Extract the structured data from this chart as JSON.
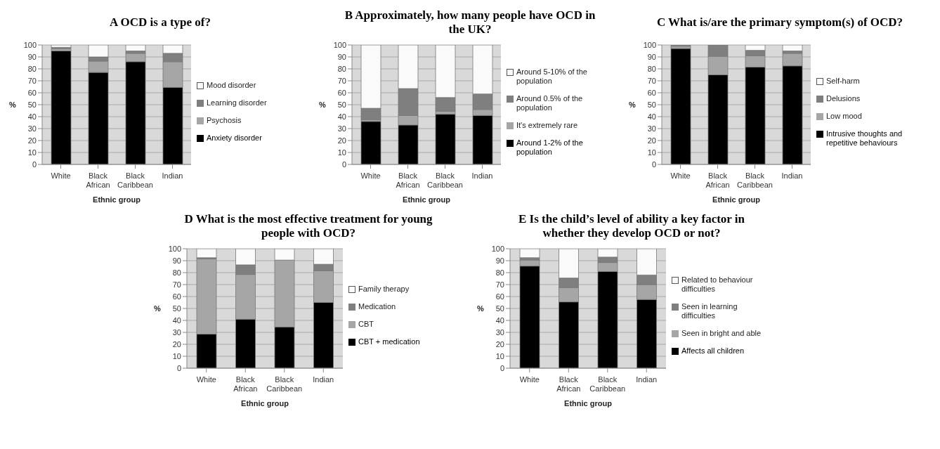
{
  "chart_data": [
    {
      "type": "bar",
      "stacked": true,
      "title": "A   OCD is a type of?",
      "xlabel": "Ethnic group",
      "ylabel": "%",
      "categories": [
        "White",
        "Black African",
        "Black Caribbean",
        "Indian"
      ],
      "ylim": [
        0,
        100
      ],
      "yticks": [
        0,
        10,
        20,
        30,
        40,
        50,
        60,
        70,
        80,
        90,
        100
      ],
      "grid": "y",
      "legend": "right",
      "series": [
        {
          "name": "Anxiety disorder",
          "color": "#000000",
          "values": [
            95,
            77,
            86,
            64.5
          ]
        },
        {
          "name": "Psychosis",
          "color": "#a6a6a6",
          "values": [
            2,
            9.5,
            7,
            21.5
          ]
        },
        {
          "name": "Learning disorder",
          "color": "#7f7f7f",
          "values": [
            1,
            3.5,
            2,
            7
          ]
        },
        {
          "name": "Mood disorder",
          "color": "#fafafa",
          "values": [
            2,
            10,
            5,
            7
          ]
        }
      ]
    },
    {
      "type": "bar",
      "stacked": true,
      "title": "B   Approximately, how many people have OCD in the UK?",
      "xlabel": "Ethnic group",
      "ylabel": "%",
      "categories": [
        "White",
        "Black African",
        "Black Caribbean",
        "Indian"
      ],
      "ylim": [
        0,
        100
      ],
      "yticks": [
        0,
        10,
        20,
        30,
        40,
        50,
        60,
        70,
        80,
        90,
        100
      ],
      "grid": "y",
      "legend": "right",
      "series": [
        {
          "name": "Around 1-2% of the population",
          "color": "#000000",
          "values": [
            36,
            33,
            42,
            41
          ]
        },
        {
          "name": "It's extremely rare",
          "color": "#a6a6a6",
          "values": [
            1.5,
            8,
            2.5,
            5
          ]
        },
        {
          "name": "Around 0.5% of the population",
          "color": "#7f7f7f",
          "values": [
            9.5,
            22.5,
            11.5,
            13
          ]
        },
        {
          "name": "Around 5-10% of the population",
          "color": "#fafafa",
          "values": [
            53,
            36.5,
            44,
            41
          ]
        }
      ]
    },
    {
      "type": "bar",
      "stacked": true,
      "title": "C   What is/are the primary symptom(s) of OCD?",
      "xlabel": "Ethnic group",
      "ylabel": "%",
      "categories": [
        "White",
        "Black African",
        "Black Caribbean",
        "Indian"
      ],
      "ylim": [
        0,
        100
      ],
      "yticks": [
        0,
        10,
        20,
        30,
        40,
        50,
        60,
        70,
        80,
        90,
        100
      ],
      "grid": "y",
      "legend": "right",
      "series": [
        {
          "name": "Intrusive thoughts and repetitive behaviours",
          "color": "#000000",
          "values": [
            97,
            75,
            81.5,
            82.5
          ]
        },
        {
          "name": "Low mood",
          "color": "#a6a6a6",
          "values": [
            2,
            15.5,
            9.5,
            10.5
          ]
        },
        {
          "name": "Delusions",
          "color": "#7f7f7f",
          "values": [
            1,
            9.5,
            4.5,
            2
          ]
        },
        {
          "name": "Self-harm",
          "color": "#fafafa",
          "values": [
            0,
            0,
            4.5,
            5
          ]
        }
      ]
    },
    {
      "type": "bar",
      "stacked": true,
      "title": "D   What is the most effective treatment for young people with OCD?",
      "xlabel": "Ethnic group",
      "ylabel": "%",
      "categories": [
        "White",
        "Black African",
        "Black Caribbean",
        "Indian"
      ],
      "ylim": [
        0,
        100
      ],
      "yticks": [
        0,
        10,
        20,
        30,
        40,
        50,
        60,
        70,
        80,
        90,
        100
      ],
      "grid": "y",
      "legend": "right",
      "series": [
        {
          "name": "CBT + medication",
          "color": "#000000",
          "values": [
            28.5,
            41,
            34.5,
            55
          ]
        },
        {
          "name": "CBT",
          "color": "#a6a6a6",
          "values": [
            63,
            37.5,
            56,
            26.5
          ]
        },
        {
          "name": "Medication",
          "color": "#7f7f7f",
          "values": [
            1,
            8,
            0,
            5.5
          ]
        },
        {
          "name": "Family therapy",
          "color": "#fafafa",
          "values": [
            7.5,
            13.5,
            9.5,
            13
          ]
        }
      ]
    },
    {
      "type": "bar",
      "stacked": true,
      "title": "E   Is the child’s level of ability a key factor in whether they develop OCD or not?",
      "xlabel": "Ethnic group",
      "ylabel": "%",
      "categories": [
        "White",
        "Black African",
        "Black Caribbean",
        "Indian"
      ],
      "ylim": [
        0,
        100
      ],
      "yticks": [
        0,
        10,
        20,
        30,
        40,
        50,
        60,
        70,
        80,
        90,
        100
      ],
      "grid": "y",
      "legend": "right",
      "series": [
        {
          "name": "Affects all children",
          "color": "#000000",
          "values": [
            85.5,
            55.5,
            81,
            57.5
          ]
        },
        {
          "name": "Seen in bright and able",
          "color": "#a6a6a6",
          "values": [
            5,
            12,
            7.5,
            12.5
          ]
        },
        {
          "name": "Seen in learning difficulties",
          "color": "#7f7f7f",
          "values": [
            2,
            8,
            4.5,
            8
          ]
        },
        {
          "name": "Related to behaviour difficulties",
          "color": "#fafafa",
          "values": [
            7.5,
            24.5,
            7,
            22
          ]
        }
      ]
    }
  ]
}
